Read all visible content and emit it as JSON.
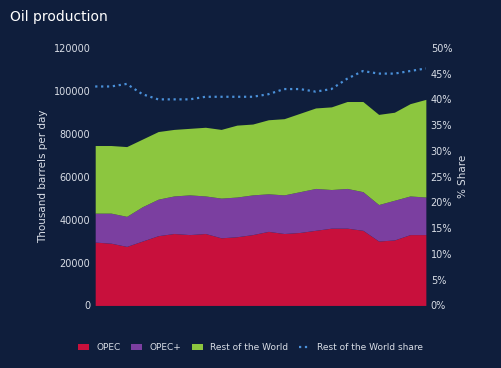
{
  "chart_data": {
    "type": "stacked_area",
    "title": "Oil production",
    "y_label": "Thousand barrels per day",
    "y2_label": "% Share",
    "categories": [
      null,
      null,
      null,
      null,
      null,
      null,
      null,
      null,
      null,
      null,
      null,
      null,
      null,
      null,
      null,
      null,
      null,
      null,
      null,
      null,
      null,
      null
    ],
    "stacked": true,
    "grid": false,
    "legend": "bottom",
    "tick_labels": "y",
    "series": [
      {
        "name": "OPEC",
        "color": "#c8103c",
        "type": "area",
        "values": [
          29500,
          29000,
          27500,
          30000,
          32500,
          33500,
          33000,
          33500,
          31500,
          32000,
          33000,
          34500,
          33500,
          34000,
          35000,
          36000,
          36000,
          35000,
          30000,
          30500,
          33000,
          33000
        ]
      },
      {
        "name": "OPEC+",
        "color": "#7b3fa0",
        "type": "area",
        "values": [
          13500,
          14000,
          14000,
          16000,
          17000,
          17500,
          18500,
          17500,
          18500,
          18500,
          18500,
          17500,
          18000,
          19000,
          19500,
          18000,
          18500,
          18000,
          17000,
          18500,
          18000,
          17500
        ]
      },
      {
        "name": "Rest of the World",
        "color": "#8cc63f",
        "type": "area",
        "values": [
          31500,
          31500,
          32500,
          31500,
          31500,
          31000,
          31000,
          32000,
          32000,
          33500,
          33000,
          34500,
          35500,
          36500,
          37500,
          38500,
          40500,
          42000,
          42000,
          41000,
          43000,
          45500
        ]
      },
      {
        "name": "Rest of the World share",
        "color": "#4a90d9",
        "type": "line",
        "line_style": "dotted",
        "axis": "y2",
        "values": [
          42.5,
          42.5,
          43,
          41,
          40,
          40,
          40,
          40.5,
          40.5,
          40.5,
          40.5,
          41,
          42,
          42,
          41.5,
          42,
          44,
          45.5,
          45,
          45,
          45.5,
          46
        ]
      }
    ],
    "xlim": [
      0,
      21
    ],
    "ylim": [
      0,
      120000
    ],
    "yticks": [
      0,
      20000,
      40000,
      60000,
      80000,
      100000,
      120000
    ],
    "y2lim": [
      0,
      50
    ],
    "y2ticks": [
      {
        "value": 0,
        "label": "0%"
      },
      {
        "value": 5,
        "label": "5%"
      },
      {
        "value": 10,
        "label": "10%"
      },
      {
        "value": 15,
        "label": "15%"
      },
      {
        "value": 20,
        "label": "20%"
      },
      {
        "value": 25,
        "label": "25%"
      },
      {
        "value": 30,
        "label": "30%"
      },
      {
        "value": 35,
        "label": "35%"
      },
      {
        "value": 40,
        "label": "40%"
      },
      {
        "value": 45,
        "label": "45%"
      },
      {
        "value": 50,
        "label": "50%"
      }
    ]
  }
}
